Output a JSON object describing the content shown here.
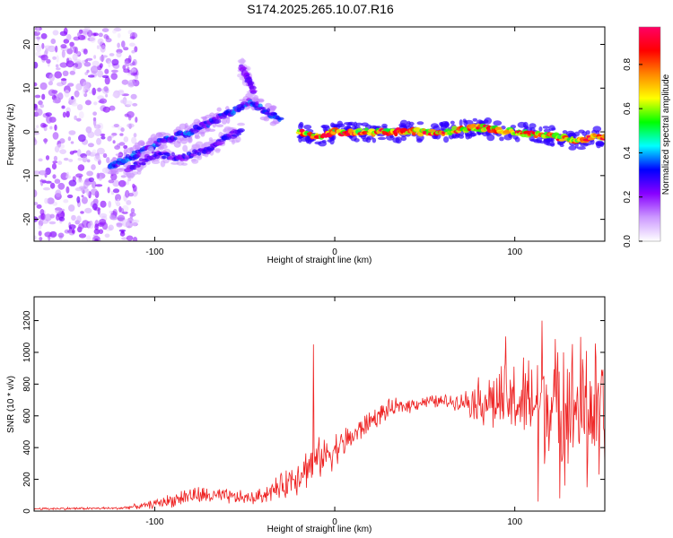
{
  "title": "S174.2025.265.10.07.R16",
  "chart_data": [
    {
      "type": "heatmap",
      "name": "spectrogram",
      "xlabel": "Height of straight line (km)",
      "ylabel": "Frequency (Hz)",
      "xlim": [
        -167,
        150
      ],
      "ylim": [
        -25,
        24
      ],
      "xticks": [
        -100,
        0,
        100
      ],
      "xtick_labels": [
        "-100",
        "0",
        "100"
      ],
      "yticks": [
        -20,
        -10,
        0,
        10,
        20
      ],
      "ytick_labels": [
        "-20",
        "-10",
        "0",
        "10",
        "20"
      ],
      "colorbar": {
        "label": "Normalized spectral amplitude",
        "range": [
          0.0,
          0.97
        ],
        "ticks": [
          0.0,
          0.2,
          0.4,
          0.6,
          0.8
        ],
        "tick_labels": [
          "0.0",
          "0.2",
          "0.4",
          "0.6",
          "0.8"
        ],
        "colormap": [
          "#ffffff",
          "#cc99ff",
          "#8800ff",
          "#0000ff",
          "#00ffff",
          "#00ff00",
          "#ffff00",
          "#ff8800",
          "#ff0000",
          "#ff0066"
        ]
      },
      "features": [
        {
          "kind": "noise",
          "x_range": [
            -167,
            -110
          ],
          "freq_range": [
            -25,
            24
          ],
          "amplitude": 0.15
        },
        {
          "kind": "ridge",
          "x": [
            -125,
            -110,
            -95,
            -80,
            -65,
            -55,
            -47,
            -40,
            -30
          ],
          "freq": [
            -8,
            -5,
            -2,
            0,
            3,
            5,
            7,
            5,
            3
          ],
          "amplitude": 0.35
        },
        {
          "kind": "ridge",
          "x": [
            -115,
            -100,
            -85,
            -70,
            -60,
            -52
          ],
          "freq": [
            -9,
            -5,
            -6,
            -4,
            -1,
            0
          ],
          "amplitude": 0.3
        },
        {
          "kind": "burst",
          "x": [
            -52,
            -48,
            -45
          ],
          "freq": [
            15,
            12,
            9
          ],
          "amplitude": 0.25
        },
        {
          "kind": "ridge",
          "x": [
            -20,
            -10,
            0,
            20,
            40,
            60,
            80,
            100,
            120,
            135,
            150
          ],
          "freq": [
            0,
            -1,
            0,
            0,
            0,
            0,
            1,
            0,
            -1,
            -2,
            -1
          ],
          "amplitude": 0.85
        }
      ]
    },
    {
      "type": "line",
      "name": "snr",
      "xlabel": "Height of straight line (km)",
      "ylabel": "SNR (10 * v/v)",
      "xlim": [
        -167,
        150
      ],
      "ylim": [
        0,
        1350
      ],
      "xticks": [
        -100,
        0,
        100
      ],
      "xtick_labels": [
        "-100",
        "0",
        "100"
      ],
      "yticks": [
        0,
        200,
        400,
        600,
        800,
        1000,
        1200
      ],
      "ytick_labels": [
        "0",
        "200",
        "400",
        "600",
        "800",
        "1000",
        "1200"
      ],
      "color": "#ee2222",
      "envelope": {
        "x": [
          -167,
          -120,
          -105,
          -90,
          -80,
          -60,
          -45,
          -30,
          -20,
          -10,
          0,
          10,
          20,
          30,
          50,
          70,
          80,
          90,
          100,
          110,
          120,
          130,
          140,
          150
        ],
        "mean": [
          15,
          18,
          35,
          70,
          100,
          90,
          80,
          150,
          240,
          320,
          390,
          470,
          570,
          640,
          690,
          690,
          700,
          690,
          690,
          680,
          670,
          650,
          650,
          640
        ],
        "spread": [
          8,
          8,
          20,
          45,
          60,
          50,
          40,
          80,
          130,
          130,
          110,
          90,
          70,
          60,
          40,
          50,
          150,
          220,
          260,
          320,
          380,
          430,
          470,
          380
        ]
      },
      "spikes": [
        {
          "x": -12,
          "y": 1050
        },
        {
          "x": 140,
          "y": 1350
        },
        {
          "x": 115,
          "y": 1200
        },
        {
          "x": 95,
          "y": 1100
        },
        {
          "x": 127,
          "y": 1000
        }
      ],
      "dips": [
        {
          "x": 113,
          "y": 60
        },
        {
          "x": 125,
          "y": 80
        },
        {
          "x": 140,
          "y": 150
        },
        {
          "x": 147,
          "y": 230
        }
      ]
    }
  ]
}
